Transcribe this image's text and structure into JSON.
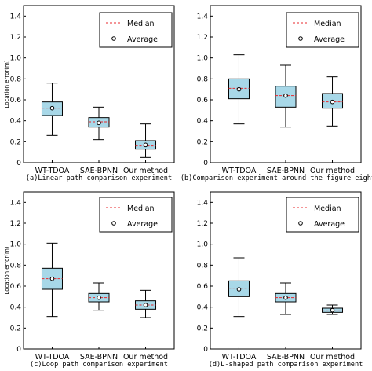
{
  "colors": {
    "box_fill": "#a8d8e8",
    "median": "#e8282d",
    "mean_marker": "#ffffff",
    "axis": "#000000"
  },
  "chart_data": [
    {
      "type": "box",
      "caption": "(a)Linear path comparison experiment",
      "ylabel": "Location error(m)",
      "ylim": [
        0,
        1.5
      ],
      "yticks": [
        "0",
        "0.2",
        "0.4",
        "0.6",
        "0.8",
        "1.0",
        "1.2",
        "1.4"
      ],
      "categories": [
        "WT-TDOA",
        "SAE-BPNN",
        "Our method"
      ],
      "boxes": [
        {
          "min": 0.26,
          "q1": 0.45,
          "median": 0.52,
          "q3": 0.58,
          "max": 0.76,
          "mean": 0.52
        },
        {
          "min": 0.22,
          "q1": 0.34,
          "median": 0.39,
          "q3": 0.43,
          "max": 0.53,
          "mean": 0.38
        },
        {
          "min": 0.05,
          "q1": 0.13,
          "median": 0.16,
          "q3": 0.21,
          "max": 0.37,
          "mean": 0.17
        }
      ],
      "legend": {
        "median": "Median",
        "average": "Average",
        "position": "top-right"
      }
    },
    {
      "type": "box",
      "caption": "(b)Comparison experiment around the figure eight",
      "ylabel": "",
      "ylim": [
        0,
        1.5
      ],
      "yticks": [
        "0",
        "0.2",
        "0.4",
        "0.6",
        "0.8",
        "1.0",
        "1.2",
        "1.4"
      ],
      "categories": [
        "WT-TDOA",
        "SAE-BPNN",
        "Our method"
      ],
      "boxes": [
        {
          "min": 0.37,
          "q1": 0.61,
          "median": 0.71,
          "q3": 0.8,
          "max": 1.03,
          "mean": 0.7
        },
        {
          "min": 0.34,
          "q1": 0.53,
          "median": 0.64,
          "q3": 0.73,
          "max": 0.93,
          "mean": 0.64
        },
        {
          "min": 0.35,
          "q1": 0.52,
          "median": 0.58,
          "q3": 0.66,
          "max": 0.82,
          "mean": 0.58
        }
      ],
      "legend": {
        "median": "Median",
        "average": "Average",
        "position": "top-right"
      }
    },
    {
      "type": "box",
      "caption": "(c)Loop path comparison experiment",
      "ylabel": "Location error(m)",
      "ylim": [
        0,
        1.5
      ],
      "yticks": [
        "0",
        "0.2",
        "0.4",
        "0.6",
        "0.8",
        "1.0",
        "1.2",
        "1.4"
      ],
      "categories": [
        "WT-TDOA",
        "SAE-BPNN",
        "Our method"
      ],
      "boxes": [
        {
          "min": 0.31,
          "q1": 0.57,
          "median": 0.67,
          "q3": 0.77,
          "max": 1.01,
          "mean": 0.67
        },
        {
          "min": 0.37,
          "q1": 0.45,
          "median": 0.49,
          "q3": 0.53,
          "max": 0.63,
          "mean": 0.49
        },
        {
          "min": 0.3,
          "q1": 0.38,
          "median": 0.42,
          "q3": 0.46,
          "max": 0.56,
          "mean": 0.42
        }
      ],
      "legend": {
        "median": "Median",
        "average": "Average",
        "position": "top-right"
      }
    },
    {
      "type": "box",
      "caption": "(d)L-shaped path comparison experiment",
      "ylabel": "",
      "ylim": [
        0,
        1.5
      ],
      "yticks": [
        "0",
        "0.2",
        "0.4",
        "0.6",
        "0.8",
        "1.0",
        "1.2",
        "1.4"
      ],
      "categories": [
        "WT-TDOA",
        "SAE-BPNN",
        "Our method"
      ],
      "boxes": [
        {
          "min": 0.31,
          "q1": 0.5,
          "median": 0.58,
          "q3": 0.65,
          "max": 0.87,
          "mean": 0.57
        },
        {
          "min": 0.33,
          "q1": 0.45,
          "median": 0.49,
          "q3": 0.53,
          "max": 0.63,
          "mean": 0.49
        },
        {
          "min": 0.33,
          "q1": 0.35,
          "median": 0.37,
          "q3": 0.39,
          "max": 0.42,
          "mean": 0.37
        }
      ],
      "legend": {
        "median": "Median",
        "average": "Average",
        "position": "top-right"
      }
    }
  ]
}
